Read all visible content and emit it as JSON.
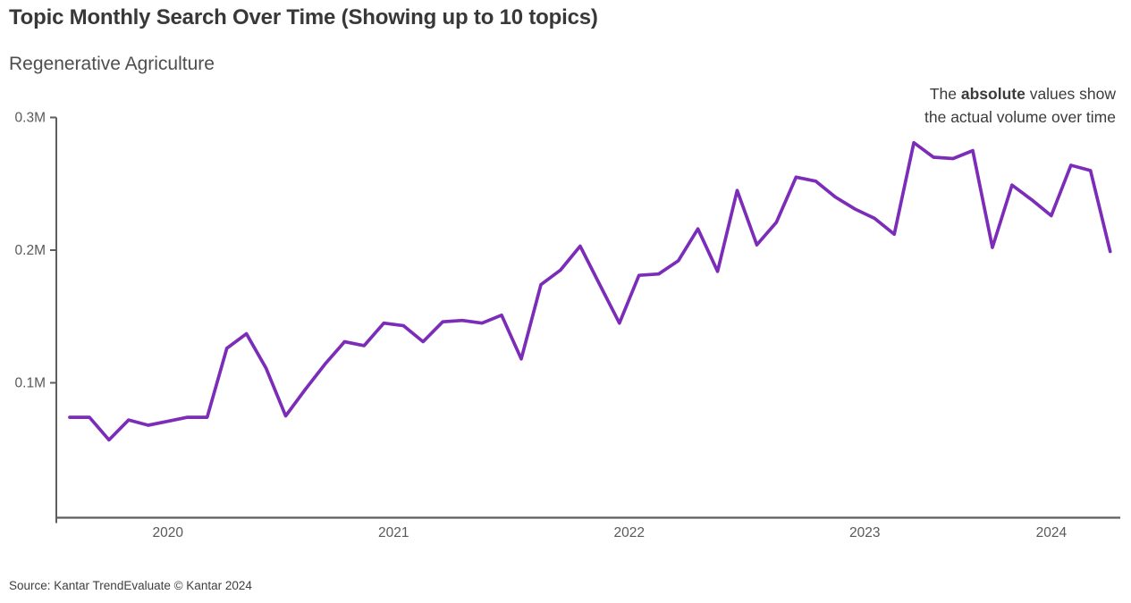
{
  "header": {
    "title": "Topic Monthly Search Over Time (Showing up to 10 topics)",
    "subtitle": "Regenerative Agriculture"
  },
  "annotation": {
    "line1_pre": "The ",
    "line1_bold": "absolute",
    "line1_post": " values show",
    "line2": "the actual volume over time"
  },
  "source": "Source: Kantar TrendEvaluate © Kantar 2024",
  "colors": {
    "line": "#7b2cb8",
    "axis": "#5e5e5e",
    "tick_text": "#595959",
    "title_text": "#383838",
    "subtitle_text": "#4e4e4e",
    "annotation_text": "#3b3b3b",
    "source_text": "#3e3e3e",
    "background": "#ffffff"
  },
  "chart_data": {
    "type": "line",
    "title": "Topic Monthly Search Over Time (Showing up to 10 topics)",
    "x_unit": "month",
    "y_unit": "monthly searches (millions)",
    "ylim": [
      0,
      0.3
    ],
    "yticks": [
      {
        "label": "0.1M",
        "value": 0.1
      },
      {
        "label": "0.2M",
        "value": 0.2
      },
      {
        "label": "0.3M",
        "value": 0.3
      }
    ],
    "xticks": [
      "2020",
      "2021",
      "2022",
      "2023",
      "2024"
    ],
    "grid": false,
    "legend": "none",
    "x": [
      "2020-02",
      "2020-03",
      "2020-04",
      "2020-05",
      "2020-06",
      "2020-07",
      "2020-08",
      "2020-09",
      "2020-10",
      "2020-11",
      "2020-12",
      "2021-01",
      "2021-02",
      "2021-03",
      "2021-04",
      "2021-05",
      "2021-06",
      "2021-07",
      "2021-08",
      "2021-09",
      "2021-10",
      "2021-11",
      "2021-12",
      "2022-01",
      "2022-02",
      "2022-03",
      "2022-04",
      "2022-05",
      "2022-06",
      "2022-07",
      "2022-08",
      "2022-09",
      "2022-10",
      "2022-11",
      "2022-12",
      "2023-01",
      "2023-02",
      "2023-03",
      "2023-04",
      "2023-05",
      "2023-06",
      "2023-07",
      "2023-08",
      "2023-09",
      "2023-10",
      "2023-11",
      "2023-12",
      "2024-01",
      "2024-02",
      "2024-03",
      "2024-04",
      "2024-05",
      "2024-06",
      "2024-07"
    ],
    "series": [
      {
        "name": "Regenerative Agriculture",
        "color": "#7b2cb8",
        "values": [
          0.074,
          0.074,
          0.057,
          0.072,
          0.068,
          0.071,
          0.074,
          0.074,
          0.126,
          0.137,
          0.111,
          0.075,
          0.095,
          0.114,
          0.131,
          0.128,
          0.145,
          0.143,
          0.131,
          0.146,
          0.147,
          0.145,
          0.151,
          0.118,
          0.174,
          0.185,
          0.203,
          0.174,
          0.145,
          0.181,
          0.182,
          0.192,
          0.216,
          0.184,
          0.245,
          0.204,
          0.221,
          0.255,
          0.252,
          0.24,
          0.231,
          0.224,
          0.212,
          0.281,
          0.27,
          0.269,
          0.275,
          0.202,
          0.249,
          0.238,
          0.226,
          0.264,
          0.26,
          0.199
        ]
      }
    ]
  }
}
